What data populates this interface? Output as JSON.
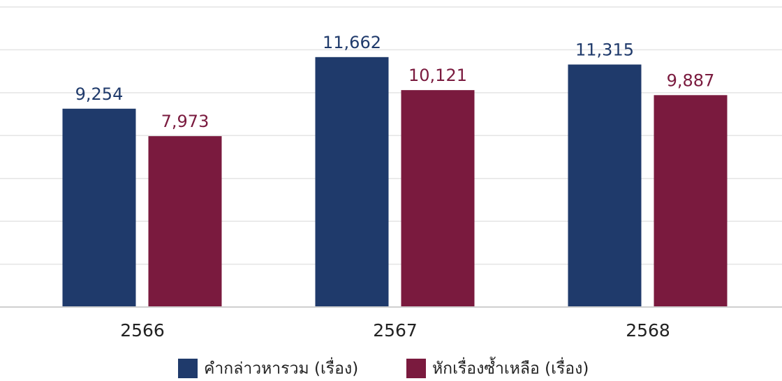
{
  "chart_data": {
    "type": "bar",
    "categories": [
      "2566",
      "2567",
      "2568"
    ],
    "series": [
      {
        "name": "คำกล่าวหารวม (เรื่อง)",
        "color": "#1f3a6b",
        "values": [
          9254,
          11662,
          11315
        ],
        "value_labels": [
          "9,254",
          "11,662",
          "11,315"
        ]
      },
      {
        "name": "หักเรื่องซ้ำเหลือ (เรื่อง)",
        "color": "#7a1a3e",
        "values": [
          7973,
          10121,
          9887
        ],
        "value_labels": [
          "7,973",
          "10,121",
          "9,887"
        ]
      }
    ],
    "ylim": [
      0,
      14000
    ],
    "yticks": [
      0,
      2000,
      4000,
      6000,
      8000,
      10000,
      12000,
      14000
    ],
    "grid": true
  }
}
